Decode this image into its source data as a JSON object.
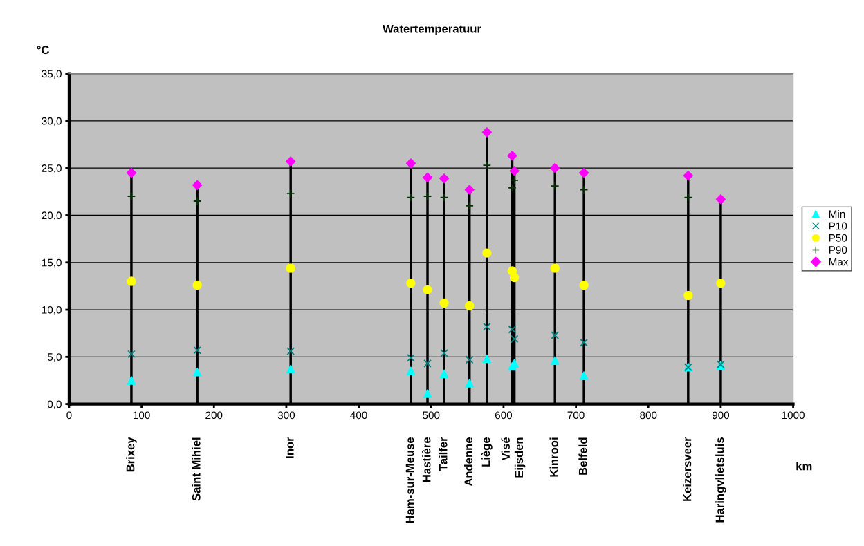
{
  "chart_data": {
    "type": "scatter",
    "title": "Watertemperatuur",
    "ylabel": "°C",
    "xlabel": "km",
    "x": [
      86,
      177,
      306,
      472,
      495,
      518,
      553,
      577,
      612,
      615,
      671,
      711,
      855,
      900
    ],
    "series": [
      {
        "name": "Min",
        "color": "#00ffff",
        "marker": "triangle",
        "values": [
          2.5,
          3.4,
          3.7,
          3.5,
          1.1,
          3.2,
          2.2,
          4.8,
          4.0,
          4.3,
          4.6,
          3.0,
          3.9,
          4.1
        ]
      },
      {
        "name": "P10",
        "color": "#008080",
        "marker": "cross",
        "values": [
          5.3,
          5.7,
          5.6,
          4.9,
          4.3,
          5.4,
          4.7,
          8.2,
          7.9,
          6.9,
          7.3,
          6.5,
          3.9,
          4.2
        ]
      },
      {
        "name": "P50",
        "color": "#ffff00",
        "marker": "circle",
        "values": [
          13.0,
          12.6,
          14.4,
          12.8,
          12.1,
          10.7,
          10.4,
          16.0,
          14.1,
          13.4,
          14.4,
          12.6,
          11.5,
          12.8
        ]
      },
      {
        "name": "P90",
        "color": "#003300",
        "marker": "plus",
        "values": [
          22.0,
          21.5,
          22.3,
          21.9,
          22.0,
          21.9,
          21.0,
          25.3,
          22.9,
          23.7,
          23.1,
          22.7,
          21.9,
          null
        ]
      },
      {
        "name": "Max",
        "color": "#ff00ff",
        "marker": "diamond",
        "type": "lollipop",
        "values": [
          24.5,
          23.2,
          25.7,
          25.5,
          24.0,
          23.9,
          22.7,
          28.8,
          26.3,
          24.7,
          25.0,
          24.5,
          24.2,
          21.7
        ]
      }
    ],
    "xlim": [
      0,
      1000
    ],
    "xticks": [
      0,
      100,
      200,
      300,
      400,
      500,
      600,
      700,
      800,
      900,
      1000
    ],
    "ylim": [
      0,
      35
    ],
    "yticks": [
      {
        "value": 0,
        "label": "0,0"
      },
      {
        "value": 5,
        "label": "5,0"
      },
      {
        "value": 10,
        "label": "10,0"
      },
      {
        "value": 15,
        "label": "15,0"
      },
      {
        "value": 20,
        "label": "20,0"
      },
      {
        "value": 25,
        "label": "25,0"
      },
      {
        "value": 30,
        "label": "30,0"
      },
      {
        "value": 35,
        "label": "35,0"
      }
    ],
    "grid": "y",
    "legend": "right",
    "annotations": [
      "Brixey",
      "Saint Mihiel",
      "Inor",
      "Ham-sur-Meuse",
      "Hastière",
      "Tailfer",
      "Andenne",
      "Liège",
      "Visé",
      "Eijsden",
      "Kinrooi",
      "Belfeld",
      "Keizersveer",
      "Haringvlietsluis"
    ]
  }
}
